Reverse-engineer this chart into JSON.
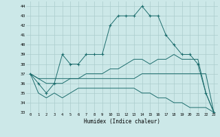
{
  "xlabel": "Humidex (Indice chaleur)",
  "x": [
    0,
    1,
    2,
    3,
    4,
    5,
    6,
    7,
    8,
    9,
    10,
    11,
    12,
    13,
    14,
    15,
    16,
    17,
    18,
    19,
    20,
    21,
    22,
    23
  ],
  "main_line": [
    37,
    36,
    35,
    36,
    39,
    38,
    38,
    39,
    39,
    39,
    42,
    43,
    43,
    43,
    44,
    43,
    43,
    41,
    40,
    39,
    39,
    38,
    35,
    33
  ],
  "line2": [
    37,
    36.5,
    36.5,
    36.5,
    36.5,
    36.5,
    36.5,
    36.5,
    36.5,
    36.5,
    36.5,
    36.5,
    36.5,
    36.5,
    37,
    37,
    37,
    37,
    37,
    37,
    37,
    37,
    37,
    33
  ],
  "line3": [
    37,
    35,
    34.5,
    35,
    34.5,
    35,
    35.5,
    35.5,
    35.5,
    35.5,
    35.5,
    35.5,
    35.5,
    35.5,
    35,
    35,
    34.5,
    34.5,
    34,
    34,
    33.5,
    33.5,
    33.5,
    33
  ],
  "line4": [
    37,
    36.5,
    36,
    36,
    36,
    36.5,
    36.5,
    37,
    37,
    37,
    37.5,
    37.5,
    38,
    38.5,
    38.5,
    38,
    38.5,
    38.5,
    39,
    38.5,
    38.5,
    38.5,
    35,
    33
  ],
  "ylim": [
    33,
    44.5
  ],
  "yticks": [
    33,
    34,
    35,
    36,
    37,
    38,
    39,
    40,
    41,
    42,
    43,
    44
  ],
  "xticks": [
    0,
    1,
    2,
    3,
    4,
    5,
    6,
    7,
    8,
    9,
    10,
    11,
    12,
    13,
    14,
    15,
    16,
    17,
    18,
    19,
    20,
    21,
    22,
    23
  ],
  "bg_color": "#cce8e8",
  "line_color": "#1a6b6b",
  "grid_color": "#aacccc"
}
